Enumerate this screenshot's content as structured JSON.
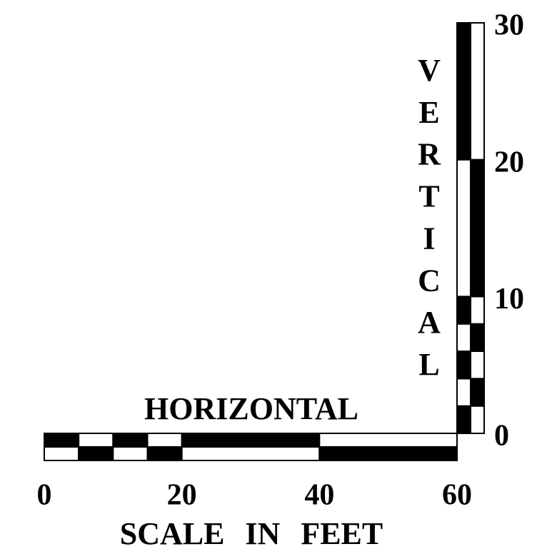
{
  "horizontal": {
    "label": "HORIZONTAL",
    "ticks": [
      0,
      20,
      40,
      60
    ]
  },
  "vertical": {
    "label": "VERTICAL",
    "ticks": [
      0,
      10,
      20,
      30
    ]
  },
  "caption": "SCALE IN FEET"
}
